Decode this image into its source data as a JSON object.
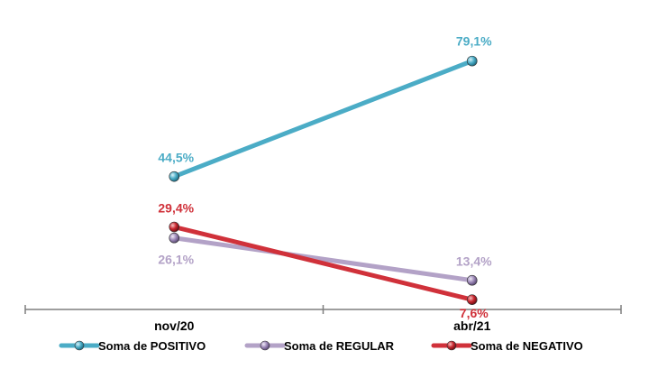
{
  "chart_data": {
    "type": "line",
    "categories": [
      "nov/20",
      "abr/21"
    ],
    "ylim": [
      0,
      100
    ],
    "grid": false,
    "legend_position": "bottom",
    "series": [
      {
        "name": "Soma de POSITIVO",
        "values": [
          44.5,
          79.1
        ],
        "labels": [
          "44,5%",
          "79,1%"
        ],
        "color": "#4BACC6"
      },
      {
        "name": "Soma de REGULAR",
        "values": [
          26.1,
          13.4
        ],
        "labels": [
          "26,1%",
          "13,4%"
        ],
        "color": "#B3A2C7"
      },
      {
        "name": "Soma de NEGATIVO",
        "values": [
          29.4,
          7.6
        ],
        "labels": [
          "29,4%",
          "7,6%"
        ],
        "color": "#D0313A"
      }
    ]
  }
}
